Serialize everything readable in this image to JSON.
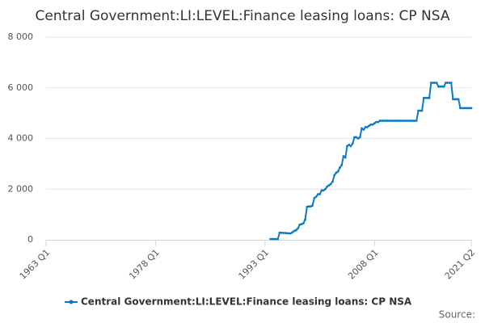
{
  "chart_data": {
    "type": "line",
    "title": "Central Government:LI:LEVEL:Finance leasing loans: CP NSA",
    "categories": [
      "1963 Q1",
      null,
      null,
      null,
      null,
      null,
      null,
      null,
      null,
      null,
      null,
      null,
      null,
      null,
      null,
      null,
      null,
      null,
      null,
      null,
      null,
      null,
      null,
      null,
      null,
      null,
      null,
      null,
      null,
      null,
      null,
      null,
      null,
      null,
      null,
      null,
      null,
      null,
      null,
      null,
      null,
      null,
      null,
      null,
      null,
      null,
      null,
      null,
      null,
      null,
      null,
      null,
      null,
      null,
      null,
      null,
      null,
      null,
      null,
      null,
      "1978 Q1",
      null,
      null,
      null,
      null,
      null,
      null,
      null,
      null,
      null,
      null,
      null,
      null,
      null,
      null,
      null,
      null,
      null,
      null,
      null,
      null,
      null,
      null,
      null,
      null,
      null,
      null,
      null,
      null,
      null,
      null,
      null,
      null,
      null,
      null,
      null,
      null,
      null,
      null,
      null,
      null,
      null,
      null,
      null,
      null,
      null,
      null,
      null,
      null,
      null,
      null,
      null,
      null,
      null,
      null,
      null,
      null,
      null,
      null,
      null,
      "1993 Q1",
      null,
      null,
      null,
      null,
      null,
      null,
      null,
      null,
      null,
      null,
      null,
      null,
      null,
      null,
      null,
      null,
      null,
      null,
      null,
      null,
      null,
      null,
      null,
      null,
      null,
      null,
      null,
      null,
      null,
      null,
      null,
      null,
      null,
      null,
      null,
      null,
      null,
      null,
      null,
      null,
      null,
      null,
      null,
      null,
      null,
      null,
      null,
      null,
      null,
      null,
      null,
      null,
      null,
      null,
      null,
      null,
      null,
      null,
      null,
      "2008 Q1",
      null,
      null,
      null,
      null,
      null,
      null,
      null,
      null,
      null,
      null,
      null,
      null,
      null,
      null,
      null,
      null,
      null,
      null,
      null,
      null,
      null,
      null,
      null,
      null,
      null,
      null,
      null,
      null,
      null,
      null,
      null,
      null,
      null,
      null,
      null,
      null,
      null,
      null,
      null,
      null,
      null,
      null,
      null,
      null,
      null,
      null,
      null,
      null,
      null,
      null,
      null,
      null,
      "2021 Q2"
    ],
    "series": [
      {
        "name": "Central Government:LI:LEVEL:Finance leasing loans: CP NSA",
        "color": "#0a7bc1",
        "values": [
          null,
          null,
          null,
          null,
          null,
          null,
          null,
          null,
          null,
          null,
          null,
          null,
          null,
          null,
          null,
          null,
          null,
          null,
          null,
          null,
          null,
          null,
          null,
          null,
          null,
          null,
          null,
          null,
          null,
          null,
          null,
          null,
          null,
          null,
          null,
          null,
          null,
          null,
          null,
          null,
          null,
          null,
          null,
          null,
          null,
          null,
          null,
          null,
          null,
          null,
          null,
          null,
          null,
          null,
          null,
          null,
          null,
          null,
          null,
          null,
          null,
          null,
          null,
          null,
          null,
          null,
          null,
          null,
          null,
          null,
          null,
          null,
          null,
          null,
          null,
          null,
          null,
          null,
          null,
          null,
          null,
          null,
          null,
          null,
          null,
          null,
          null,
          null,
          null,
          null,
          null,
          null,
          null,
          null,
          null,
          null,
          null,
          null,
          null,
          null,
          null,
          null,
          null,
          null,
          null,
          null,
          null,
          null,
          null,
          null,
          null,
          null,
          null,
          null,
          null,
          null,
          null,
          null,
          null,
          null,
          null,
          null,
          null,
          30,
          30,
          30,
          30,
          30,
          280,
          280,
          270,
          270,
          260,
          260,
          250,
          300,
          350,
          380,
          450,
          600,
          620,
          650,
          800,
          1300,
          1320,
          1320,
          1350,
          1650,
          1700,
          1800,
          1800,
          1950,
          1950,
          2000,
          2100,
          2150,
          2200,
          2300,
          2550,
          2650,
          2700,
          2850,
          2950,
          3300,
          3250,
          3700,
          3750,
          3700,
          3800,
          4050,
          4050,
          4000,
          4050,
          4400,
          4350,
          4450,
          4450,
          4500,
          4550,
          4550,
          4600,
          4650,
          4650,
          4700,
          4700,
          4700,
          4700,
          4700,
          4700,
          4700,
          4700,
          4700,
          4700,
          4700,
          4700,
          4700,
          4700,
          4700,
          4700,
          4700,
          4700,
          4700,
          4700,
          4700,
          5100,
          5100,
          5100,
          5600,
          5600,
          5600,
          5600,
          6200,
          6200,
          6200,
          6200,
          6050,
          6050,
          6050,
          6050,
          6200,
          6200,
          6200,
          6200,
          5550,
          5550,
          5550,
          5550,
          5200,
          5200,
          5200,
          5200,
          5200,
          5200,
          5200
        ]
      }
    ],
    "ylim": [
      0,
      8000
    ],
    "yticks": [
      0,
      {
        "value": 2000,
        "label": "2 000"
      },
      {
        "value": 4000,
        "label": "4 000"
      },
      {
        "value": 6000,
        "label": "6 000"
      },
      {
        "value": 8000,
        "label": "8 000"
      }
    ],
    "grid": true,
    "source": "Source:"
  }
}
